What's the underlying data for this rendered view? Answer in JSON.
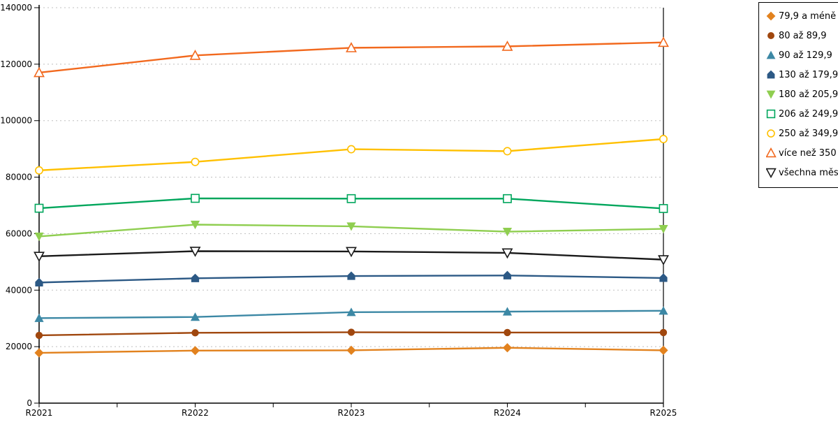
{
  "chart_data": {
    "type": "line",
    "title": "",
    "xlabel": "",
    "ylabel": "",
    "categories": [
      "R2021",
      "R2022",
      "R2023",
      "R2024",
      "R2025"
    ],
    "series": [
      {
        "name": "79,9 a méně",
        "color": "#E2821E",
        "marker": "diamond",
        "fill": "solid",
        "values": [
          17800,
          18600,
          18700,
          19600,
          18700
        ]
      },
      {
        "name": "80 až 89,9",
        "color": "#A0470E",
        "marker": "circle",
        "fill": "solid",
        "values": [
          24000,
          24900,
          25100,
          25000,
          25000
        ]
      },
      {
        "name": "90 až 129,9",
        "color": "#3C88A5",
        "marker": "triangle-up",
        "fill": "solid",
        "values": [
          30100,
          30500,
          32200,
          32400,
          32700
        ]
      },
      {
        "name": "130 až 179,9",
        "color": "#2C5985",
        "marker": "pentagon",
        "fill": "solid",
        "values": [
          42700,
          44200,
          45000,
          45200,
          44300
        ]
      },
      {
        "name": "180 až 205,9",
        "color": "#8FCE50",
        "marker": "triangle-down",
        "fill": "solid",
        "values": [
          59000,
          63200,
          62600,
          60700,
          61700
        ]
      },
      {
        "name": "206 až 249,9",
        "color": "#00A65C",
        "marker": "square",
        "fill": "hollow",
        "values": [
          69000,
          72500,
          72400,
          72400,
          68900
        ]
      },
      {
        "name": "250 až 349,9",
        "color": "#FFC000",
        "marker": "circle",
        "fill": "hollow",
        "values": [
          82400,
          85400,
          89900,
          89200,
          93500
        ]
      },
      {
        "name": "více než 350",
        "color": "#F2691E",
        "marker": "triangle-up",
        "fill": "hollow",
        "values": [
          117000,
          123100,
          125800,
          126300,
          127700
        ]
      },
      {
        "name": "všechna města",
        "color": "#1A1A1A",
        "marker": "triangle-down",
        "fill": "hollow",
        "values": [
          52000,
          53800,
          53700,
          53200,
          50800
        ]
      }
    ],
    "ylim": [
      0,
      140000
    ],
    "ytick_step": 20000,
    "ytick_labels": [
      "0",
      "20000",
      "40000",
      "60000",
      "80000",
      "100000",
      "120000",
      "140000"
    ],
    "grid": "horizontal-dashed",
    "grid_color": "#bfbfbf",
    "axis_color": "#000000",
    "legend_position": "top-right"
  }
}
